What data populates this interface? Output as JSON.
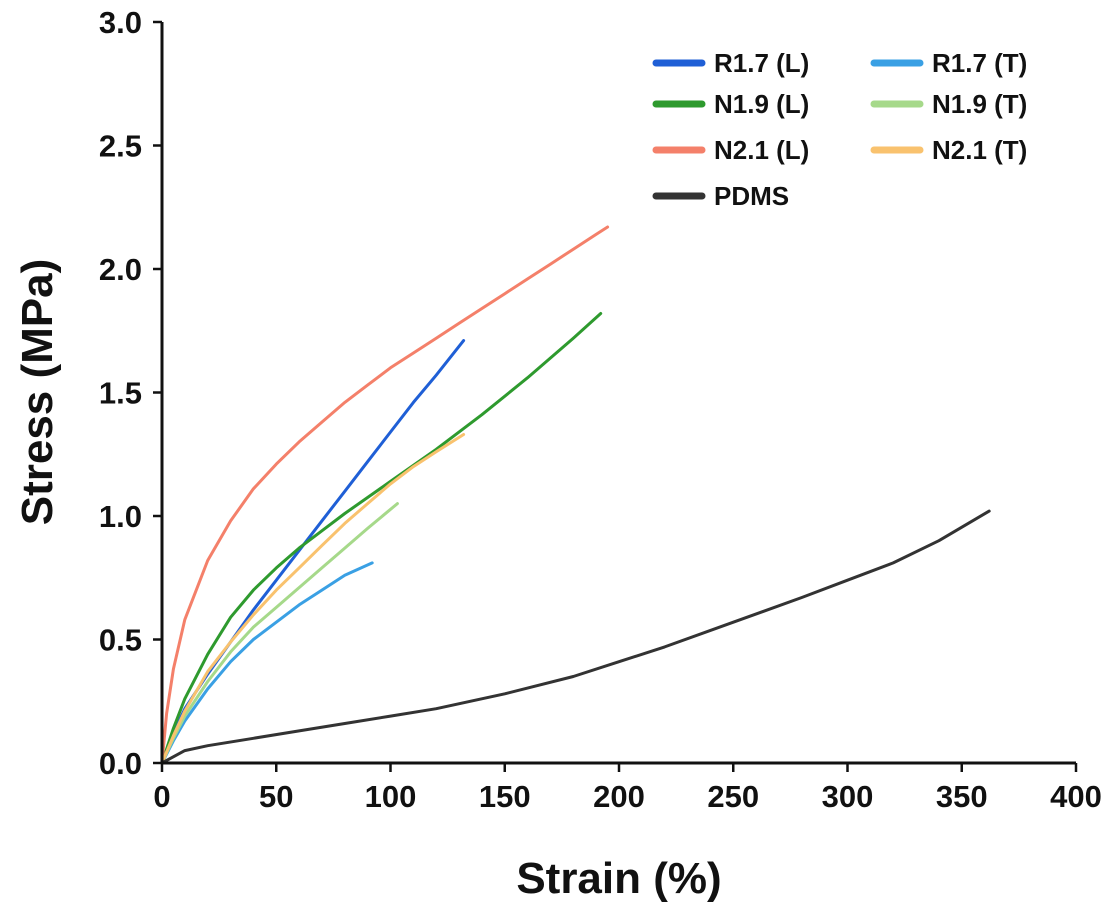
{
  "chart_data": {
    "type": "line",
    "xlabel": "Strain (%)",
    "ylabel": "Stress (MPa)",
    "xlim": [
      0,
      400
    ],
    "ylim": [
      0,
      3.0
    ],
    "xticks": [
      "0",
      "50",
      "100",
      "150",
      "200",
      "250",
      "300",
      "350",
      "400"
    ],
    "yticks": [
      "0.0",
      "0.5",
      "1.0",
      "1.5",
      "2.0",
      "2.5",
      "3.0"
    ],
    "grid": false,
    "legend_position": "top-right",
    "series": [
      {
        "name": "R1.7 (L)",
        "color": "#1f5fd6",
        "points": [
          [
            0,
            0
          ],
          [
            5,
            0.12
          ],
          [
            10,
            0.22
          ],
          [
            20,
            0.36
          ],
          [
            30,
            0.49
          ],
          [
            40,
            0.62
          ],
          [
            50,
            0.74
          ],
          [
            60,
            0.86
          ],
          [
            70,
            0.98
          ],
          [
            80,
            1.1
          ],
          [
            90,
            1.22
          ],
          [
            100,
            1.34
          ],
          [
            110,
            1.46
          ],
          [
            120,
            1.57
          ],
          [
            132,
            1.71
          ]
        ]
      },
      {
        "name": "R1.7 (T)",
        "color": "#3aa0e4",
        "points": [
          [
            0,
            0
          ],
          [
            5,
            0.09
          ],
          [
            10,
            0.17
          ],
          [
            20,
            0.3
          ],
          [
            30,
            0.41
          ],
          [
            40,
            0.5
          ],
          [
            50,
            0.57
          ],
          [
            60,
            0.64
          ],
          [
            70,
            0.7
          ],
          [
            80,
            0.76
          ],
          [
            92,
            0.81
          ]
        ]
      },
      {
        "name": "N1.9 (L)",
        "color": "#2e9a2e",
        "points": [
          [
            0,
            0
          ],
          [
            5,
            0.14
          ],
          [
            10,
            0.26
          ],
          [
            20,
            0.44
          ],
          [
            30,
            0.59
          ],
          [
            40,
            0.7
          ],
          [
            50,
            0.79
          ],
          [
            60,
            0.87
          ],
          [
            70,
            0.94
          ],
          [
            80,
            1.01
          ],
          [
            100,
            1.14
          ],
          [
            120,
            1.27
          ],
          [
            140,
            1.41
          ],
          [
            160,
            1.56
          ],
          [
            180,
            1.72
          ],
          [
            192,
            1.82
          ]
        ]
      },
      {
        "name": "N1.9 (T)",
        "color": "#a6d98a",
        "points": [
          [
            0,
            0
          ],
          [
            5,
            0.1
          ],
          [
            10,
            0.19
          ],
          [
            20,
            0.33
          ],
          [
            30,
            0.45
          ],
          [
            40,
            0.55
          ],
          [
            50,
            0.63
          ],
          [
            60,
            0.71
          ],
          [
            70,
            0.79
          ],
          [
            80,
            0.87
          ],
          [
            90,
            0.95
          ],
          [
            103,
            1.05
          ]
        ]
      },
      {
        "name": "N2.1 (L)",
        "color": "#f4806a",
        "points": [
          [
            0,
            0
          ],
          [
            2,
            0.2
          ],
          [
            5,
            0.38
          ],
          [
            10,
            0.58
          ],
          [
            20,
            0.82
          ],
          [
            30,
            0.98
          ],
          [
            40,
            1.11
          ],
          [
            50,
            1.21
          ],
          [
            60,
            1.3
          ],
          [
            70,
            1.38
          ],
          [
            80,
            1.46
          ],
          [
            90,
            1.53
          ],
          [
            100,
            1.6
          ],
          [
            110,
            1.66
          ],
          [
            120,
            1.72
          ],
          [
            130,
            1.78
          ],
          [
            140,
            1.84
          ],
          [
            150,
            1.9
          ],
          [
            160,
            1.96
          ],
          [
            170,
            2.02
          ],
          [
            180,
            2.08
          ],
          [
            190,
            2.14
          ],
          [
            195,
            2.17
          ]
        ]
      },
      {
        "name": "N2.1 (T)",
        "color": "#f9c26e",
        "points": [
          [
            0,
            0
          ],
          [
            5,
            0.11
          ],
          [
            10,
            0.21
          ],
          [
            20,
            0.37
          ],
          [
            30,
            0.49
          ],
          [
            40,
            0.6
          ],
          [
            50,
            0.7
          ],
          [
            60,
            0.79
          ],
          [
            70,
            0.88
          ],
          [
            80,
            0.97
          ],
          [
            90,
            1.05
          ],
          [
            100,
            1.13
          ],
          [
            110,
            1.2
          ],
          [
            120,
            1.26
          ],
          [
            132,
            1.33
          ]
        ]
      },
      {
        "name": "PDMS",
        "color": "#333333",
        "points": [
          [
            0,
            0
          ],
          [
            10,
            0.05
          ],
          [
            20,
            0.07
          ],
          [
            40,
            0.1
          ],
          [
            60,
            0.13
          ],
          [
            80,
            0.16
          ],
          [
            100,
            0.19
          ],
          [
            120,
            0.22
          ],
          [
            150,
            0.28
          ],
          [
            180,
            0.35
          ],
          [
            200,
            0.41
          ],
          [
            220,
            0.47
          ],
          [
            250,
            0.57
          ],
          [
            280,
            0.67
          ],
          [
            300,
            0.74
          ],
          [
            320,
            0.81
          ],
          [
            340,
            0.9
          ],
          [
            362,
            1.02
          ]
        ]
      }
    ]
  }
}
